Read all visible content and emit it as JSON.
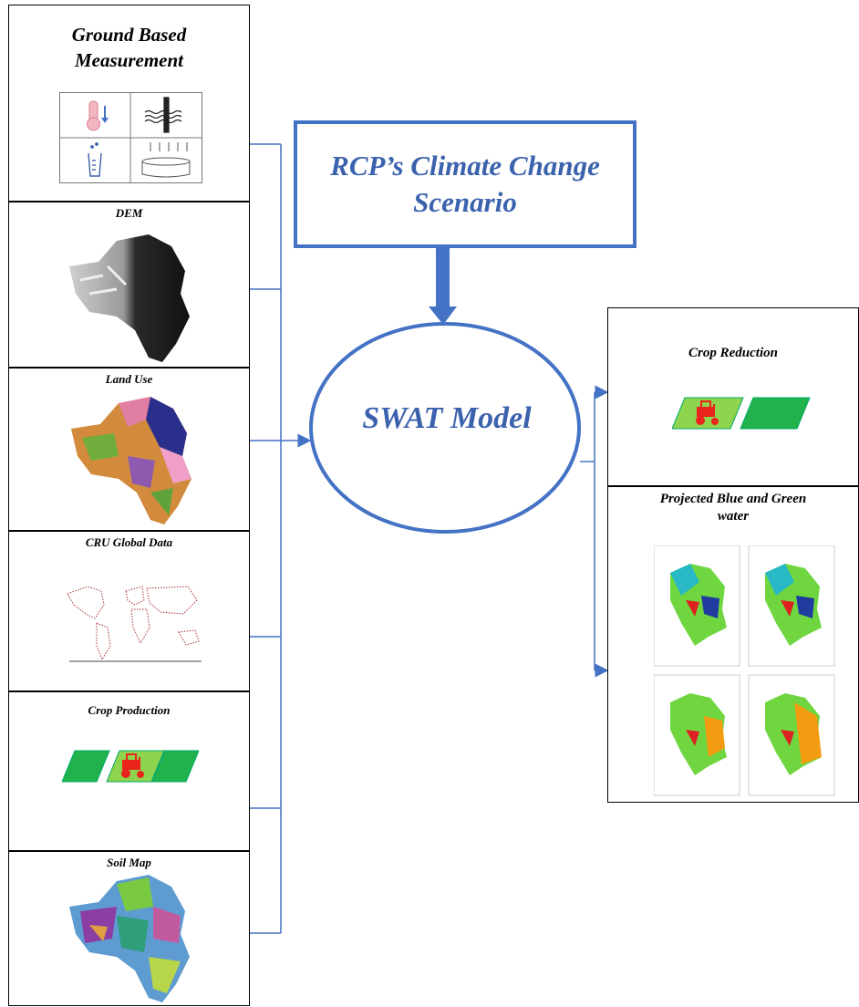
{
  "inputs": {
    "ground": "Ground Based\nMeasurement",
    "dem": "DEM",
    "landuse": "Land Use",
    "cru": "CRU Global Data",
    "crop_production": "Crop Production",
    "soil": "Soil Map"
  },
  "scenario": "RCP’s Climate Change\nScenario",
  "model": "SWAT Model",
  "outputs": {
    "crop_reduction": "Crop Reduction",
    "blue_green": "Projected Blue and Green\nwater"
  },
  "colors": {
    "accent_blue": "#4472c4",
    "title_blue": "#3b62ad",
    "parallelogram_green": "#22b24c",
    "light_green": "#8fd44f",
    "tractor_red": "#e8241c"
  },
  "icons": [
    "thermometer-icon",
    "water-level-icon",
    "rain-gauge-icon",
    "evaporation-pan-icon",
    "tractor-icon"
  ]
}
